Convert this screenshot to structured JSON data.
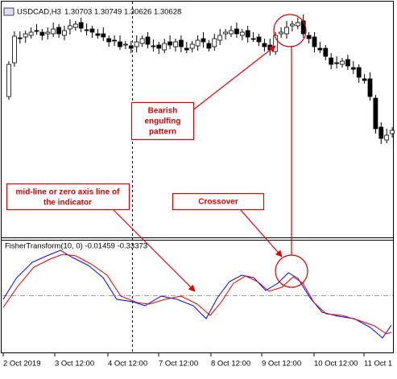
{
  "header": {
    "symbol": "USDCAD,H3",
    "ohlc": "1.30703 1.30749 1.30626 1.30628"
  },
  "indicator": {
    "label": "FisherTransform(10, 0) -0.01459 -0.33373"
  },
  "annotations": {
    "bearish": [
      "Bearish",
      "engulfing",
      "pattern"
    ],
    "midline": [
      "mid-line or zero axis line of",
      "the indicator"
    ],
    "crossover": "Crossover"
  },
  "x_axis": {
    "labels": [
      "2 Oct 2019",
      "3 Oct 12:00",
      "4 Oct 12:00",
      "7 Oct 12:00",
      "8 Oct 12:00",
      "9 Oct 12:00",
      "10 Oct 12:00",
      "11 Oct 1"
    ]
  }
}
